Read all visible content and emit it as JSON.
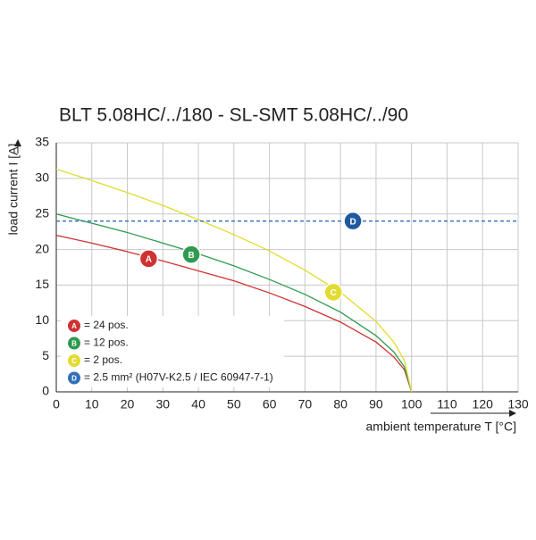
{
  "chart_data": {
    "type": "line",
    "title": "BLT 5.08HC/../180 - SL-SMT 5.08HC/../90",
    "x_label": "ambient temperature T [°C]",
    "y_label": "load current I [A]",
    "xlim": [
      0,
      130
    ],
    "xticks": [
      0,
      10,
      20,
      30,
      40,
      50,
      60,
      70,
      80,
      90,
      100,
      110,
      120,
      130
    ],
    "ylim": [
      0,
      35
    ],
    "yticks": [
      0,
      5,
      10,
      15,
      20,
      25,
      30,
      35
    ],
    "grid": true,
    "series": [
      {
        "name": "= 24 pos.",
        "badge": "A",
        "color": "#d03232",
        "dash": false,
        "x": [
          0,
          10,
          20,
          30,
          40,
          50,
          60,
          70,
          80,
          90,
          95,
          98,
          100
        ],
        "values": [
          22,
          20.9,
          19.7,
          18.4,
          17.0,
          15.6,
          13.9,
          12.0,
          9.8,
          7.0,
          4.9,
          3.1,
          0
        ]
      },
      {
        "name": "= 12 pos.",
        "badge": "B",
        "color": "#2f9a50",
        "dash": false,
        "x": [
          0,
          10,
          20,
          30,
          40,
          50,
          60,
          70,
          80,
          90,
          95,
          98,
          100
        ],
        "values": [
          25,
          23.7,
          22.4,
          20.9,
          19.4,
          17.7,
          15.8,
          13.7,
          11.2,
          7.9,
          5.6,
          3.5,
          0
        ]
      },
      {
        "name": "= 2 pos.",
        "badge": "C",
        "color": "#e2dc30",
        "dash": false,
        "x": [
          0,
          10,
          20,
          30,
          40,
          50,
          60,
          70,
          80,
          90,
          95,
          98,
          100
        ],
        "values": [
          31.3,
          29.7,
          28.0,
          26.2,
          24.2,
          22.1,
          19.8,
          17.1,
          14.0,
          9.9,
          7.0,
          4.4,
          0
        ]
      },
      {
        "name": "= 2.5 mm² (H07V-K2.5 / IEC 60947-7-1)",
        "badge": "D",
        "color": "#2f6fb8",
        "dash": true,
        "x": [
          0,
          130
        ],
        "values": [
          24,
          24
        ]
      }
    ],
    "markers": [
      {
        "label": "A",
        "x": 26,
        "y": 18.7,
        "color": "#d03232"
      },
      {
        "label": "B",
        "x": 38,
        "y": 19.3,
        "color": "#2f9a50"
      },
      {
        "label": "C",
        "x": 78,
        "y": 14,
        "color": "#e2dc30"
      },
      {
        "label": "D",
        "x": 83.5,
        "y": 24,
        "color": "#1f5a9e"
      }
    ]
  }
}
